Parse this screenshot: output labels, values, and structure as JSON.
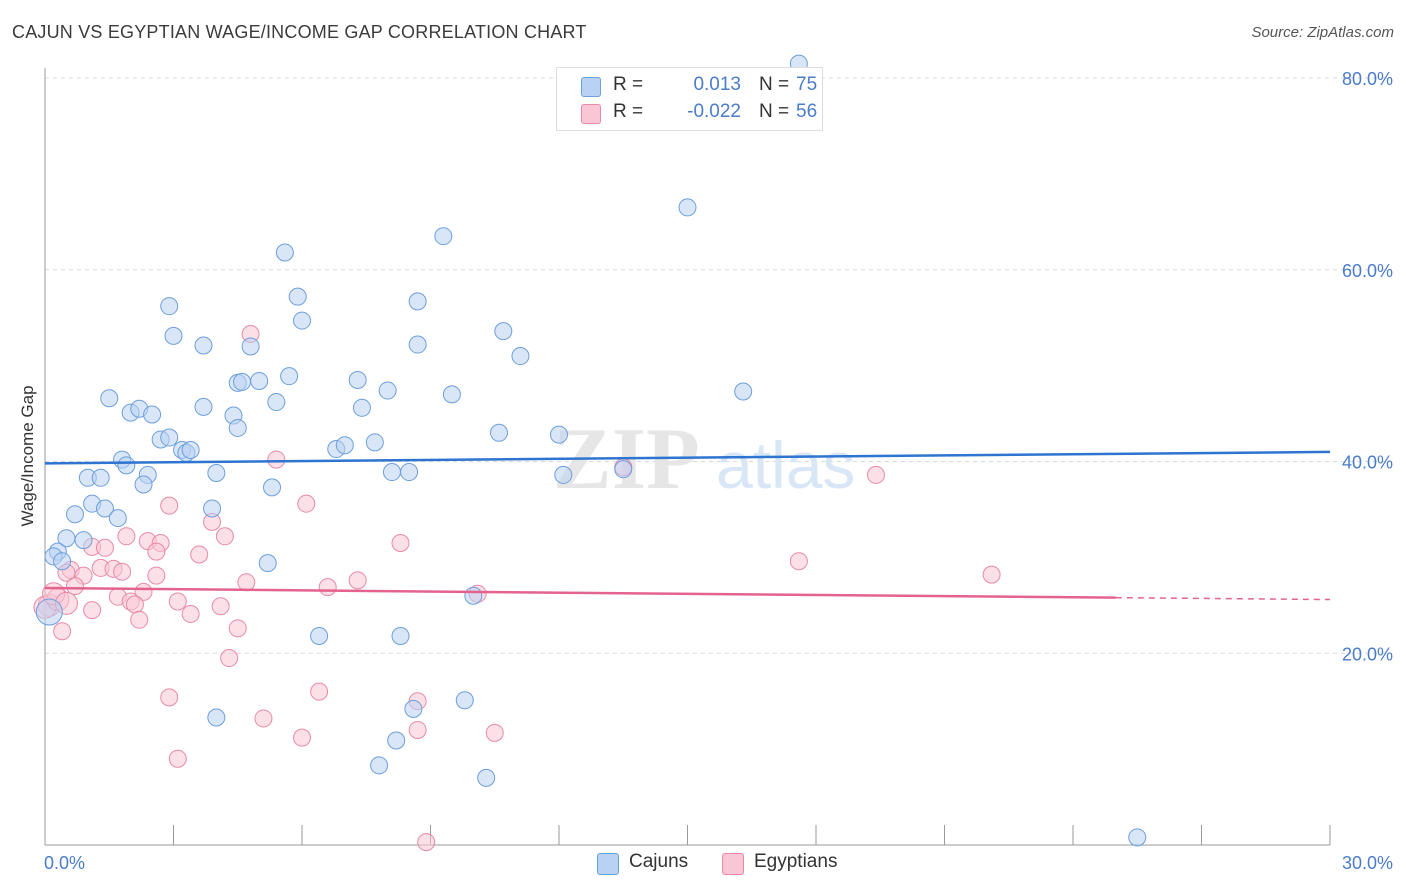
{
  "title": "CAJUN VS EGYPTIAN WAGE/INCOME GAP CORRELATION CHART",
  "source": "Source: ZipAtlas.com",
  "watermark": {
    "part1": "ZIP",
    "part2": "atlas"
  },
  "colors": {
    "cajun_fill": "#b9d2f3",
    "cajun_stroke": "#6d9fdb",
    "cajun_line": "#2e74d1",
    "egypt_fill": "#f9c6d6",
    "egypt_stroke": "#e88aa8",
    "egypt_line": "#e4638e",
    "axis_text": "#4a7cc9",
    "grid": "#d8d8d8"
  },
  "legend": {
    "rows": [
      {
        "r_label": "R =",
        "r_value": "0.013",
        "n_label": "N =",
        "n_value": "75"
      },
      {
        "r_label": "R =",
        "r_value": "-0.022",
        "n_label": "N =",
        "n_value": "56"
      }
    ],
    "bottom": [
      "Cajuns",
      "Egyptians"
    ]
  },
  "chart_data": {
    "type": "scatter",
    "title": "CAJUN VS EGYPTIAN WAGE/INCOME GAP CORRELATION CHART",
    "xlabel": "",
    "ylabel": "Wage/Income Gap",
    "xlim": [
      0,
      30
    ],
    "ylim": [
      0,
      80
    ],
    "x_tick_labels": {
      "min": "0.0%",
      "max": "30.0%"
    },
    "y_ticks": [
      20,
      40,
      60,
      80
    ],
    "y_tick_labels": [
      "20.0%",
      "40.0%",
      "60.0%",
      "80.0%"
    ],
    "grid": true,
    "legend_position": "top-center",
    "series": [
      {
        "name": "Cajuns",
        "r": 0.013,
        "n": 75,
        "trend": {
          "x": [
            0,
            30
          ],
          "y": [
            39.8,
            41.0
          ]
        },
        "points": [
          [
            17.6,
            81.5
          ],
          [
            15.0,
            66.5
          ],
          [
            9.3,
            63.5
          ],
          [
            5.6,
            61.8
          ],
          [
            2.9,
            56.2
          ],
          [
            5.9,
            57.2
          ],
          [
            8.7,
            56.7
          ],
          [
            6.0,
            54.7
          ],
          [
            3.0,
            53.1
          ],
          [
            10.7,
            53.6
          ],
          [
            11.1,
            51.0
          ],
          [
            3.7,
            52.1
          ],
          [
            4.8,
            52.0
          ],
          [
            8.7,
            52.2
          ],
          [
            4.5,
            48.2
          ],
          [
            4.6,
            48.3
          ],
          [
            5.0,
            48.4
          ],
          [
            5.7,
            48.9
          ],
          [
            7.3,
            48.5
          ],
          [
            8.0,
            47.4
          ],
          [
            9.5,
            47.0
          ],
          [
            16.3,
            47.3
          ],
          [
            1.5,
            46.6
          ],
          [
            5.4,
            46.2
          ],
          [
            3.7,
            45.7
          ],
          [
            7.4,
            45.6
          ],
          [
            2.0,
            45.1
          ],
          [
            2.2,
            45.5
          ],
          [
            2.5,
            44.9
          ],
          [
            4.4,
            44.8
          ],
          [
            4.5,
            43.5
          ],
          [
            2.7,
            42.3
          ],
          [
            2.9,
            42.5
          ],
          [
            3.2,
            41.2
          ],
          [
            3.3,
            40.9
          ],
          [
            3.4,
            41.2
          ],
          [
            6.8,
            41.3
          ],
          [
            7.0,
            41.7
          ],
          [
            7.7,
            42.0
          ],
          [
            10.6,
            43.0
          ],
          [
            12.0,
            42.8
          ],
          [
            1.8,
            40.2
          ],
          [
            1.9,
            39.6
          ],
          [
            2.4,
            38.6
          ],
          [
            4.0,
            38.8
          ],
          [
            8.1,
            38.9
          ],
          [
            8.5,
            38.9
          ],
          [
            12.1,
            38.6
          ],
          [
            13.5,
            39.2
          ],
          [
            1.0,
            38.3
          ],
          [
            1.3,
            38.3
          ],
          [
            2.3,
            37.6
          ],
          [
            5.3,
            37.3
          ],
          [
            1.1,
            35.6
          ],
          [
            1.4,
            35.1
          ],
          [
            0.7,
            34.5
          ],
          [
            1.7,
            34.1
          ],
          [
            3.9,
            35.1
          ],
          [
            0.5,
            32.0
          ],
          [
            0.9,
            31.8
          ],
          [
            0.3,
            30.6
          ],
          [
            0.2,
            30.1
          ],
          [
            0.4,
            29.6
          ],
          [
            5.2,
            29.4
          ],
          [
            10.0,
            26.0
          ],
          [
            6.4,
            21.8
          ],
          [
            8.3,
            21.8
          ],
          [
            4.0,
            13.3
          ],
          [
            8.6,
            14.2
          ],
          [
            9.8,
            15.1
          ],
          [
            8.2,
            10.9
          ],
          [
            7.8,
            8.3
          ],
          [
            10.3,
            7.0
          ],
          [
            25.5,
            0.8
          ],
          [
            0.1,
            24.3
          ]
        ]
      },
      {
        "name": "Egyptians",
        "r": -0.022,
        "n": 56,
        "trend": {
          "x": [
            0,
            25.0
          ],
          "y": [
            26.8,
            25.8
          ],
          "dashed_to": {
            "x": 30,
            "y": 25.6
          }
        },
        "points": [
          [
            4.8,
            53.3
          ],
          [
            5.4,
            40.2
          ],
          [
            13.5,
            39.4
          ],
          [
            19.4,
            38.6
          ],
          [
            2.9,
            35.4
          ],
          [
            6.1,
            35.6
          ],
          [
            3.9,
            33.7
          ],
          [
            1.9,
            32.2
          ],
          [
            4.2,
            32.2
          ],
          [
            2.4,
            31.7
          ],
          [
            2.7,
            31.5
          ],
          [
            8.3,
            31.5
          ],
          [
            1.1,
            31.1
          ],
          [
            1.4,
            31.0
          ],
          [
            2.6,
            30.6
          ],
          [
            3.6,
            30.3
          ],
          [
            17.6,
            29.6
          ],
          [
            0.6,
            28.7
          ],
          [
            1.3,
            28.9
          ],
          [
            1.6,
            28.8
          ],
          [
            0.5,
            28.4
          ],
          [
            0.9,
            28.1
          ],
          [
            1.8,
            28.5
          ],
          [
            2.6,
            28.1
          ],
          [
            22.1,
            28.2
          ],
          [
            4.7,
            27.4
          ],
          [
            7.3,
            27.6
          ],
          [
            6.6,
            26.9
          ],
          [
            2.3,
            26.4
          ],
          [
            10.1,
            26.2
          ],
          [
            1.7,
            25.9
          ],
          [
            2.0,
            25.4
          ],
          [
            2.1,
            25.1
          ],
          [
            3.1,
            25.4
          ],
          [
            4.1,
            24.9
          ],
          [
            1.1,
            24.5
          ],
          [
            3.4,
            24.1
          ],
          [
            2.2,
            23.5
          ],
          [
            4.5,
            22.6
          ],
          [
            0.4,
            22.3
          ],
          [
            4.3,
            19.5
          ],
          [
            6.4,
            16.0
          ],
          [
            2.9,
            15.4
          ],
          [
            8.7,
            15.0
          ],
          [
            5.1,
            13.2
          ],
          [
            8.7,
            12.0
          ],
          [
            10.5,
            11.7
          ],
          [
            6.0,
            11.2
          ],
          [
            3.1,
            9.0
          ],
          [
            8.9,
            0.3
          ],
          [
            0.1,
            25.0
          ],
          [
            0.0,
            24.8
          ],
          [
            0.3,
            25.6
          ],
          [
            0.2,
            26.2
          ],
          [
            0.5,
            25.2
          ],
          [
            0.7,
            27.0
          ]
        ]
      }
    ]
  }
}
